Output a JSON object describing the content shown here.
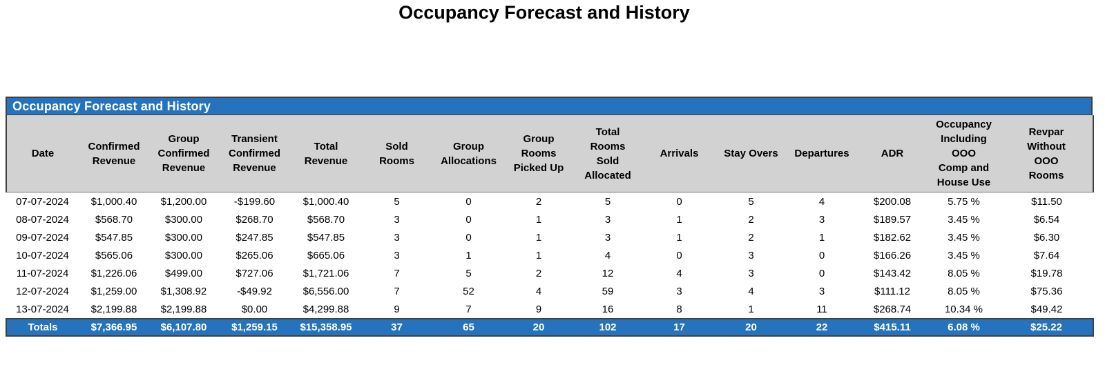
{
  "page_title": "Occupancy Forecast and History",
  "table": {
    "title": "Occupancy Forecast and History",
    "columns": [
      "Date",
      "Confirmed\nRevenue",
      "Group\nConfirmed\nRevenue",
      "Transient\nConfirmed\nRevenue",
      "Total\nRevenue",
      "Sold\nRooms",
      "Group\nAllocations",
      "Group\nRooms\nPicked Up",
      "Total\nRooms\nSold\nAllocated",
      "Arrivals",
      "Stay Overs",
      "Departures",
      "ADR",
      "Occupancy\nIncluding\nOOO\nComp and\nHouse Use",
      "Revpar\nWithout\nOOO\nRooms"
    ],
    "rows": [
      [
        "07-07-2024",
        "$1,000.40",
        "$1,200.00",
        "-$199.60",
        "$1,000.40",
        "5",
        "0",
        "2",
        "5",
        "0",
        "5",
        "4",
        "$200.08",
        "5.75 %",
        "$11.50"
      ],
      [
        "08-07-2024",
        "$568.70",
        "$300.00",
        "$268.70",
        "$568.70",
        "3",
        "0",
        "1",
        "3",
        "1",
        "2",
        "3",
        "$189.57",
        "3.45 %",
        "$6.54"
      ],
      [
        "09-07-2024",
        "$547.85",
        "$300.00",
        "$247.85",
        "$547.85",
        "3",
        "0",
        "1",
        "3",
        "1",
        "2",
        "1",
        "$182.62",
        "3.45 %",
        "$6.30"
      ],
      [
        "10-07-2024",
        "$565.06",
        "$300.00",
        "$265.06",
        "$665.06",
        "3",
        "1",
        "1",
        "4",
        "0",
        "3",
        "0",
        "$166.26",
        "3.45 %",
        "$7.64"
      ],
      [
        "11-07-2024",
        "$1,226.06",
        "$499.00",
        "$727.06",
        "$1,721.06",
        "7",
        "5",
        "2",
        "12",
        "4",
        "3",
        "0",
        "$143.42",
        "8.05 %",
        "$19.78"
      ],
      [
        "12-07-2024",
        "$1,259.00",
        "$1,308.92",
        "-$49.92",
        "$6,556.00",
        "7",
        "52",
        "4",
        "59",
        "3",
        "4",
        "3",
        "$111.12",
        "8.05 %",
        "$75.36"
      ],
      [
        "13-07-2024",
        "$2,199.88",
        "$2,199.88",
        "$0.00",
        "$4,299.88",
        "9",
        "7",
        "9",
        "16",
        "8",
        "1",
        "11",
        "$268.74",
        "10.34 %",
        "$49.42"
      ]
    ],
    "totals": [
      "Totals",
      "$7,366.95",
      "$6,107.80",
      "$1,259.15",
      "$15,358.95",
      "37",
      "65",
      "20",
      "102",
      "17",
      "20",
      "22",
      "$415.11",
      "6.08 %",
      "$25.22"
    ]
  },
  "colors": {
    "accent_blue": "#2573bd",
    "header_gray": "#d2d2d2",
    "border_dark": "#404040",
    "totals_text": "#ffffff",
    "body_text": "#000000"
  }
}
